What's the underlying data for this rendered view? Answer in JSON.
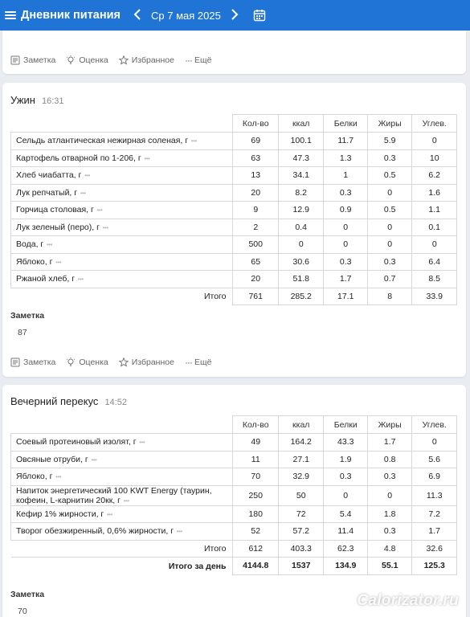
{
  "header": {
    "title": "Дневник питания",
    "date": "Ср 7 мая 2025",
    "prev_icon": "chevron-left-icon",
    "next_icon": "chevron-right-icon",
    "calendar_icon": "calendar-icon"
  },
  "actions": {
    "note": "Заметка",
    "rating": "Оценка",
    "favorite": "Избранное",
    "more": "Ещё"
  },
  "columns": [
    "Кол-во",
    "ккал",
    "Белки",
    "Жиры",
    "Углев."
  ],
  "dinner": {
    "title": "Ужин",
    "time": "16:31",
    "rows": [
      {
        "name": "Сельдь атлантическая нежирная соленая, г",
        "qty": "69",
        "kcal": "100.1",
        "protein": "11.7",
        "fat": "5.9",
        "carbs": "0"
      },
      {
        "name": "Картофель отварной по 1-206, г",
        "qty": "63",
        "kcal": "47.3",
        "protein": "1.3",
        "fat": "0.3",
        "carbs": "10"
      },
      {
        "name": "Хлеб чиабатта, г",
        "qty": "13",
        "kcal": "34.1",
        "protein": "1",
        "fat": "0.5",
        "carbs": "6.2"
      },
      {
        "name": "Лук репчатый, г",
        "qty": "20",
        "kcal": "8.2",
        "protein": "0.3",
        "fat": "0",
        "carbs": "1.6"
      },
      {
        "name": "Горчица столовая, г",
        "qty": "9",
        "kcal": "12.9",
        "protein": "0.9",
        "fat": "0.5",
        "carbs": "1.1"
      },
      {
        "name": "Лук зеленый (перо), г",
        "qty": "2",
        "kcal": "0.4",
        "protein": "0",
        "fat": "0",
        "carbs": "0.1"
      },
      {
        "name": "Вода, г",
        "qty": "500",
        "kcal": "0",
        "protein": "0",
        "fat": "0",
        "carbs": "0"
      },
      {
        "name": "Яблоко, г",
        "qty": "65",
        "kcal": "30.6",
        "protein": "0.3",
        "fat": "0.3",
        "carbs": "6.4"
      },
      {
        "name": "Ржаной хлеб, г",
        "qty": "20",
        "kcal": "51.8",
        "protein": "1.7",
        "fat": "0.7",
        "carbs": "8.5"
      }
    ],
    "total": {
      "label": "Итого",
      "qty": "761",
      "kcal": "285.2",
      "protein": "17.1",
      "fat": "8",
      "carbs": "33.9"
    },
    "note_label": "Заметка",
    "note_value": "87"
  },
  "snack": {
    "title": "Вечерний перекус",
    "time": "14:52",
    "rows": [
      {
        "name": "Соевый протеиновый изолят, г",
        "qty": "49",
        "kcal": "164.2",
        "protein": "43.3",
        "fat": "1.7",
        "carbs": "0"
      },
      {
        "name": "Овсяные отруби, г",
        "qty": "11",
        "kcal": "27.1",
        "protein": "1.9",
        "fat": "0.8",
        "carbs": "5.6"
      },
      {
        "name": "Яблоко, г",
        "qty": "70",
        "kcal": "32.9",
        "protein": "0.3",
        "fat": "0.3",
        "carbs": "6.9"
      },
      {
        "name": "Напиток энергетический 100 KWT Energy (таурин, кофеин, L-карнитин 20кк, г",
        "qty": "250",
        "kcal": "50",
        "protein": "0",
        "fat": "0",
        "carbs": "11.3"
      },
      {
        "name": "Кефир 1% жирности, г",
        "qty": "180",
        "kcal": "72",
        "protein": "5.4",
        "fat": "1.8",
        "carbs": "7.2"
      },
      {
        "name": "Творог обезжиренный, 0,6% жирности, г",
        "qty": "52",
        "kcal": "57.2",
        "protein": "11.4",
        "fat": "0.3",
        "carbs": "1.7"
      }
    ],
    "total": {
      "label": "Итого",
      "qty": "612",
      "kcal": "403.3",
      "protein": "62.3",
      "fat": "4.8",
      "carbs": "32.6"
    },
    "day_total": {
      "label": "Итого за день",
      "qty": "4144.8",
      "kcal": "1537",
      "protein": "134.9",
      "fat": "55.1",
      "carbs": "125.3"
    },
    "note_label": "Заметка",
    "note_value": "70"
  },
  "watermark": "Calorizator.ru"
}
